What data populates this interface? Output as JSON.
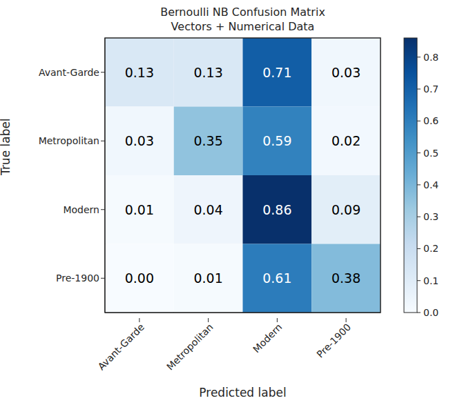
{
  "chart_data": {
    "type": "heatmap",
    "title": "Bernoulli NB Confusion Matrix",
    "subtitle": "Vectors + Numerical Data",
    "x_label": "Predicted label",
    "y_label": "True label",
    "x_categories": [
      "Avant-Garde",
      "Metropolitan",
      "Modern",
      "Pre-1900"
    ],
    "y_categories": [
      "Avant-Garde",
      "Metropolitan",
      "Modern",
      "Pre-1900"
    ],
    "cells": [
      [
        0.13,
        0.13,
        0.71,
        0.03
      ],
      [
        0.03,
        0.35,
        0.59,
        0.02
      ],
      [
        0.01,
        0.04,
        0.86,
        0.09
      ],
      [
        0.0,
        0.01,
        0.61,
        0.38
      ]
    ],
    "value_labels": [
      [
        "0.13",
        "0.13",
        "0.71",
        "0.03"
      ],
      [
        "0.03",
        "0.35",
        "0.59",
        "0.02"
      ],
      [
        "0.01",
        "0.04",
        "0.86",
        "0.09"
      ],
      [
        "0.00",
        "0.01",
        "0.61",
        "0.38"
      ]
    ],
    "colorbar": {
      "range": [
        0,
        0.86
      ],
      "ticks": [
        {
          "value": 0,
          "label": "0.0"
        },
        0.1,
        0.2,
        0.3,
        0.4,
        0.5,
        0.6,
        0.7,
        0.8
      ]
    }
  }
}
